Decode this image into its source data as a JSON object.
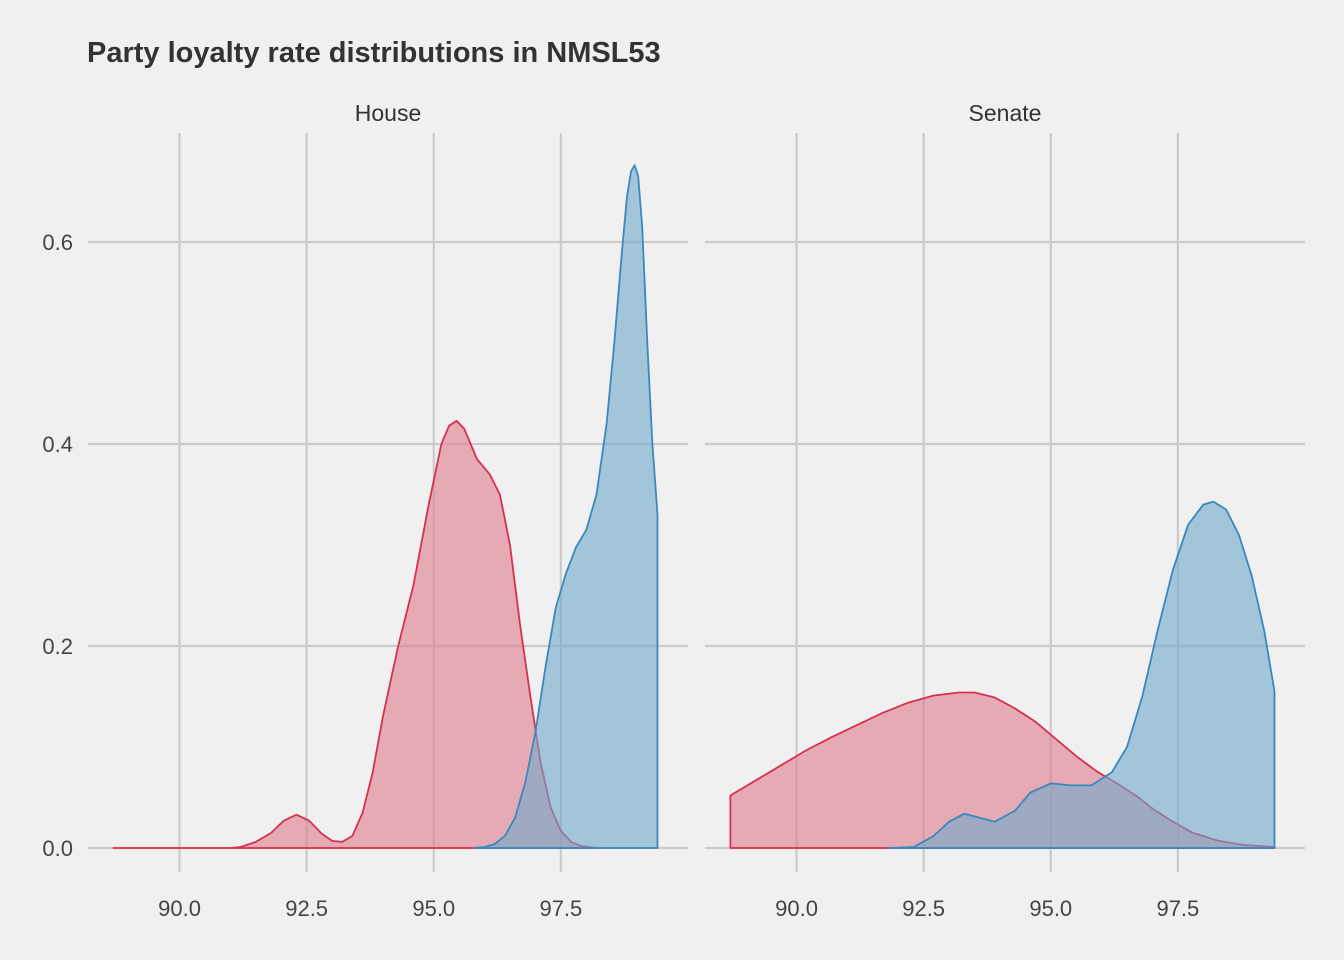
{
  "chart_data": {
    "type": "area",
    "title": "Party loyalty rate distributions in NMSL53",
    "xlabel": "",
    "ylabel": "",
    "colors": {
      "red_fill": "#e07b8c",
      "red_line": "#d6314f",
      "blue_fill": "#6fa8cc",
      "blue_line": "#3a88bd",
      "grid": "#cbcbcb",
      "background": "#f0f0f0"
    },
    "ylim": [
      0,
      0.7
    ],
    "y_ticks": [
      "0.0",
      "0.2",
      "0.4",
      "0.6"
    ],
    "y_tick_values": [
      0,
      0.2,
      0.4,
      0.6
    ],
    "x_ticks": [
      "90.0",
      "92.5",
      "95.0",
      "97.5"
    ],
    "x_tick_values": [
      90,
      92.5,
      95,
      97.5
    ],
    "panels": [
      {
        "label": "House",
        "xlim": [
          88.2,
          100.0
        ],
        "series": [
          {
            "color": "red",
            "points": [
              [
                88.7,
                0
              ],
              [
                90,
                0
              ],
              [
                91,
                0
              ],
              [
                91.2,
                0.001
              ],
              [
                91.5,
                0.006
              ],
              [
                91.8,
                0.015
              ],
              [
                92.05,
                0.027
              ],
              [
                92.3,
                0.033
              ],
              [
                92.55,
                0.027
              ],
              [
                92.8,
                0.014
              ],
              [
                93.0,
                0.007
              ],
              [
                93.2,
                0.006
              ],
              [
                93.4,
                0.012
              ],
              [
                93.6,
                0.035
              ],
              [
                93.8,
                0.075
              ],
              [
                94.0,
                0.13
              ],
              [
                94.3,
                0.2
              ],
              [
                94.6,
                0.26
              ],
              [
                94.9,
                0.34
              ],
              [
                95.15,
                0.4
              ],
              [
                95.3,
                0.418
              ],
              [
                95.45,
                0.423
              ],
              [
                95.6,
                0.415
              ],
              [
                95.85,
                0.385
              ],
              [
                96.1,
                0.37
              ],
              [
                96.3,
                0.35
              ],
              [
                96.5,
                0.3
              ],
              [
                96.7,
                0.22
              ],
              [
                96.9,
                0.15
              ],
              [
                97.1,
                0.085
              ],
              [
                97.3,
                0.04
              ],
              [
                97.5,
                0.017
              ],
              [
                97.7,
                0.006
              ],
              [
                97.9,
                0.002
              ],
              [
                98.2,
                0
              ]
            ]
          },
          {
            "color": "blue",
            "points": [
              [
                95.8,
                0
              ],
              [
                96.0,
                0.001
              ],
              [
                96.2,
                0.004
              ],
              [
                96.4,
                0.012
              ],
              [
                96.6,
                0.03
              ],
              [
                96.8,
                0.065
              ],
              [
                97.0,
                0.115
              ],
              [
                97.2,
                0.18
              ],
              [
                97.4,
                0.238
              ],
              [
                97.6,
                0.272
              ],
              [
                97.8,
                0.298
              ],
              [
                98.0,
                0.315
              ],
              [
                98.2,
                0.35
              ],
              [
                98.4,
                0.42
              ],
              [
                98.55,
                0.5
              ],
              [
                98.7,
                0.59
              ],
              [
                98.8,
                0.645
              ],
              [
                98.88,
                0.67
              ],
              [
                98.95,
                0.676
              ],
              [
                99.02,
                0.665
              ],
              [
                99.1,
                0.615
              ],
              [
                99.2,
                0.5
              ],
              [
                99.3,
                0.4
              ],
              [
                99.4,
                0.33
              ],
              [
                99.4,
                0
              ]
            ]
          }
        ]
      },
      {
        "label": "Senate",
        "xlim": [
          88.2,
          100.0
        ],
        "series": [
          {
            "color": "red",
            "points": [
              [
                88.7,
                0
              ],
              [
                88.7,
                0.052
              ],
              [
                89.2,
                0.067
              ],
              [
                89.7,
                0.082
              ],
              [
                90.2,
                0.097
              ],
              [
                90.7,
                0.11
              ],
              [
                91.2,
                0.122
              ],
              [
                91.7,
                0.134
              ],
              [
                92.2,
                0.144
              ],
              [
                92.7,
                0.151
              ],
              [
                93.2,
                0.154
              ],
              [
                93.5,
                0.154
              ],
              [
                93.9,
                0.149
              ],
              [
                94.3,
                0.138
              ],
              [
                94.7,
                0.125
              ],
              [
                95.1,
                0.108
              ],
              [
                95.5,
                0.091
              ],
              [
                95.9,
                0.076
              ],
              [
                96.3,
                0.064
              ],
              [
                96.7,
                0.051
              ],
              [
                97.0,
                0.039
              ],
              [
                97.4,
                0.026
              ],
              [
                97.8,
                0.015
              ],
              [
                98.3,
                0.007
              ],
              [
                98.8,
                0.003
              ],
              [
                99.4,
                0.001
              ],
              [
                99.4,
                0
              ]
            ]
          },
          {
            "color": "blue",
            "points": [
              [
                91.8,
                0
              ],
              [
                92.3,
                0.001
              ],
              [
                92.7,
                0.012
              ],
              [
                93.0,
                0.026
              ],
              [
                93.3,
                0.034
              ],
              [
                93.6,
                0.03
              ],
              [
                93.9,
                0.026
              ],
              [
                94.3,
                0.037
              ],
              [
                94.6,
                0.055
              ],
              [
                95.0,
                0.064
              ],
              [
                95.4,
                0.062
              ],
              [
                95.8,
                0.062
              ],
              [
                96.2,
                0.075
              ],
              [
                96.5,
                0.1
              ],
              [
                96.8,
                0.15
              ],
              [
                97.1,
                0.215
              ],
              [
                97.4,
                0.275
              ],
              [
                97.7,
                0.32
              ],
              [
                98.0,
                0.34
              ],
              [
                98.2,
                0.343
              ],
              [
                98.45,
                0.335
              ],
              [
                98.7,
                0.31
              ],
              [
                98.95,
                0.27
              ],
              [
                99.2,
                0.215
              ],
              [
                99.4,
                0.155
              ],
              [
                99.4,
                0
              ]
            ]
          }
        ]
      }
    ]
  }
}
